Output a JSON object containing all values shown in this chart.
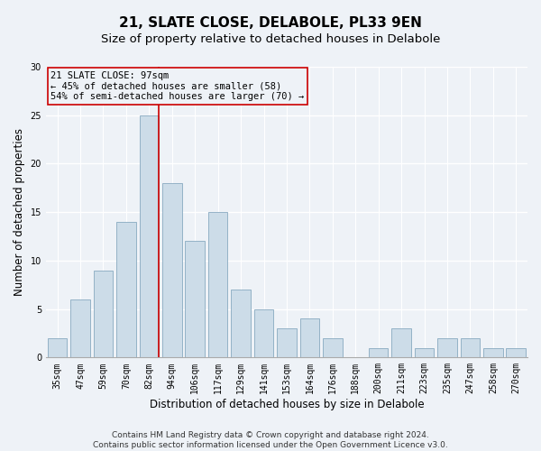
{
  "title": "21, SLATE CLOSE, DELABOLE, PL33 9EN",
  "subtitle": "Size of property relative to detached houses in Delabole",
  "xlabel": "Distribution of detached houses by size in Delabole",
  "ylabel": "Number of detached properties",
  "categories": [
    "35sqm",
    "47sqm",
    "59sqm",
    "70sqm",
    "82sqm",
    "94sqm",
    "106sqm",
    "117sqm",
    "129sqm",
    "141sqm",
    "153sqm",
    "164sqm",
    "176sqm",
    "188sqm",
    "200sqm",
    "211sqm",
    "223sqm",
    "235sqm",
    "247sqm",
    "258sqm",
    "270sqm"
  ],
  "values": [
    2,
    6,
    9,
    14,
    25,
    18,
    12,
    15,
    7,
    5,
    3,
    4,
    2,
    0,
    1,
    3,
    1,
    2,
    2,
    1,
    1
  ],
  "bar_color": "#ccdce8",
  "bar_edge_color": "#88aac0",
  "background_color": "#eef2f7",
  "grid_color": "#ffffff",
  "vline_color": "#cc0000",
  "vline_position": 4.43,
  "annotation_box_color": "#cc0000",
  "annotation_lines": [
    "21 SLATE CLOSE: 97sqm",
    "← 45% of detached houses are smaller (58)",
    "54% of semi-detached houses are larger (70) →"
  ],
  "ylim": [
    0,
    30
  ],
  "yticks": [
    0,
    5,
    10,
    15,
    20,
    25,
    30
  ],
  "footer_line1": "Contains HM Land Registry data © Crown copyright and database right 2024.",
  "footer_line2": "Contains public sector information licensed under the Open Government Licence v3.0.",
  "title_fontsize": 11,
  "subtitle_fontsize": 9.5,
  "axis_label_fontsize": 8.5,
  "tick_fontsize": 7,
  "annotation_fontsize": 7.5,
  "footer_fontsize": 6.5
}
